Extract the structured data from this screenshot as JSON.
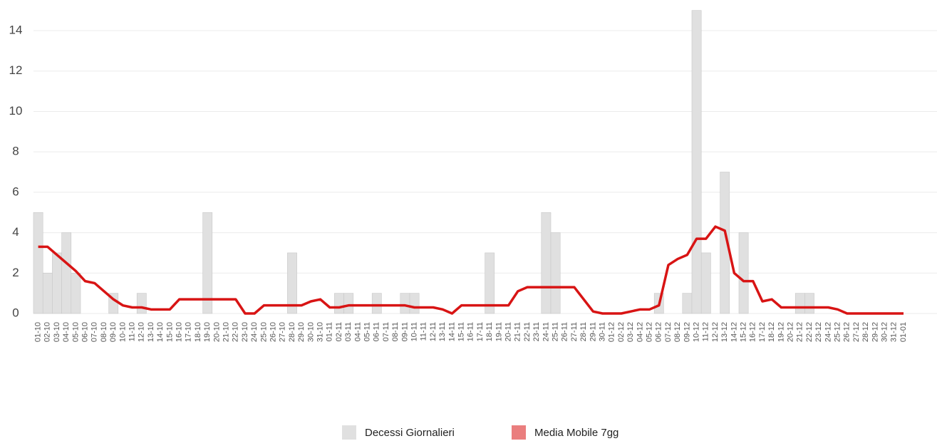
{
  "chart_data": {
    "type": "bar-line",
    "categories": [
      "01-10",
      "02-10",
      "03-10",
      "04-10",
      "05-10",
      "06-10",
      "07-10",
      "08-10",
      "09-10",
      "10-10",
      "11-10",
      "12-10",
      "13-10",
      "14-10",
      "15-10",
      "16-10",
      "17-10",
      "18-10",
      "19-10",
      "20-10",
      "21-10",
      "22-10",
      "23-10",
      "24-10",
      "25-10",
      "26-10",
      "27-10",
      "28-10",
      "29-10",
      "30-10",
      "31-10",
      "01-11",
      "02-11",
      "03-11",
      "04-11",
      "05-11",
      "06-11",
      "07-11",
      "08-11",
      "09-11",
      "10-11",
      "11-11",
      "12-11",
      "13-11",
      "14-11",
      "15-11",
      "16-11",
      "17-11",
      "18-11",
      "19-11",
      "20-11",
      "21-11",
      "22-11",
      "23-11",
      "24-11",
      "25-11",
      "26-11",
      "27-11",
      "28-11",
      "29-11",
      "30-11",
      "01-12",
      "02-12",
      "03-12",
      "04-12",
      "05-12",
      "06-12",
      "07-12",
      "08-12",
      "09-12",
      "10-12",
      "11-12",
      "12-12",
      "13-12",
      "14-12",
      "15-12",
      "16-12",
      "17-12",
      "18-12",
      "19-12",
      "20-12",
      "21-12",
      "22-12",
      "23-12",
      "24-12",
      "25-12",
      "26-12",
      "27-12",
      "28-12",
      "29-12",
      "30-12",
      "31-12",
      "01-01"
    ],
    "series": [
      {
        "name": "Decessi Giornalieri",
        "kind": "bar",
        "color": "#e0e0e0",
        "values": [
          5,
          2,
          3,
          4,
          2,
          0,
          0,
          0,
          1,
          0,
          0,
          1,
          0,
          0,
          0,
          0,
          0,
          0,
          5,
          0,
          0,
          0,
          0,
          0,
          0,
          0,
          0,
          3,
          0,
          0,
          0,
          0,
          1,
          1,
          0,
          0,
          1,
          0,
          0,
          1,
          1,
          0,
          0,
          0,
          0,
          0,
          0,
          0,
          3,
          0,
          0,
          0,
          0,
          0,
          5,
          4,
          0,
          0,
          0,
          0,
          0,
          0,
          0,
          0,
          0,
          0,
          1,
          0,
          0,
          1,
          15,
          3,
          0,
          7,
          0,
          4,
          0,
          0,
          0,
          0,
          0,
          1,
          1,
          0,
          0,
          0,
          0,
          0,
          0,
          0,
          0,
          0,
          0
        ]
      },
      {
        "name": "Media Mobile 7gg",
        "kind": "line",
        "color": "#d81414",
        "values": [
          3.3,
          3.3,
          2.9,
          2.5,
          2.1,
          1.6,
          1.5,
          1.1,
          0.7,
          0.4,
          0.3,
          0.3,
          0.2,
          0.2,
          0.2,
          0.7,
          0.7,
          0.7,
          0.7,
          0.7,
          0.7,
          0.7,
          0,
          0,
          0.4,
          0.4,
          0.4,
          0.4,
          0.4,
          0.6,
          0.7,
          0.3,
          0.3,
          0.4,
          0.4,
          0.4,
          0.4,
          0.4,
          0.4,
          0.4,
          0.3,
          0.3,
          0.3,
          0.2,
          0,
          0.4,
          0.4,
          0.4,
          0.4,
          0.4,
          0.4,
          1.1,
          1.3,
          1.3,
          1.3,
          1.3,
          1.3,
          1.3,
          0.7,
          0.1,
          0,
          0,
          0,
          0.1,
          0.2,
          0.2,
          0.4,
          2.4,
          2.7,
          2.9,
          3.7,
          3.7,
          4.3,
          4.1,
          2.0,
          1.6,
          1.6,
          0.6,
          0.7,
          0.3,
          0.3,
          0.3,
          0.3,
          0.3,
          0.3,
          0.2,
          0,
          0,
          0,
          0,
          0,
          0,
          0
        ]
      }
    ],
    "ylim": [
      0,
      15.2
    ],
    "yticks": [
      0,
      2,
      4,
      6,
      8,
      10,
      12,
      14
    ],
    "grid": true,
    "legend": "bottom"
  }
}
